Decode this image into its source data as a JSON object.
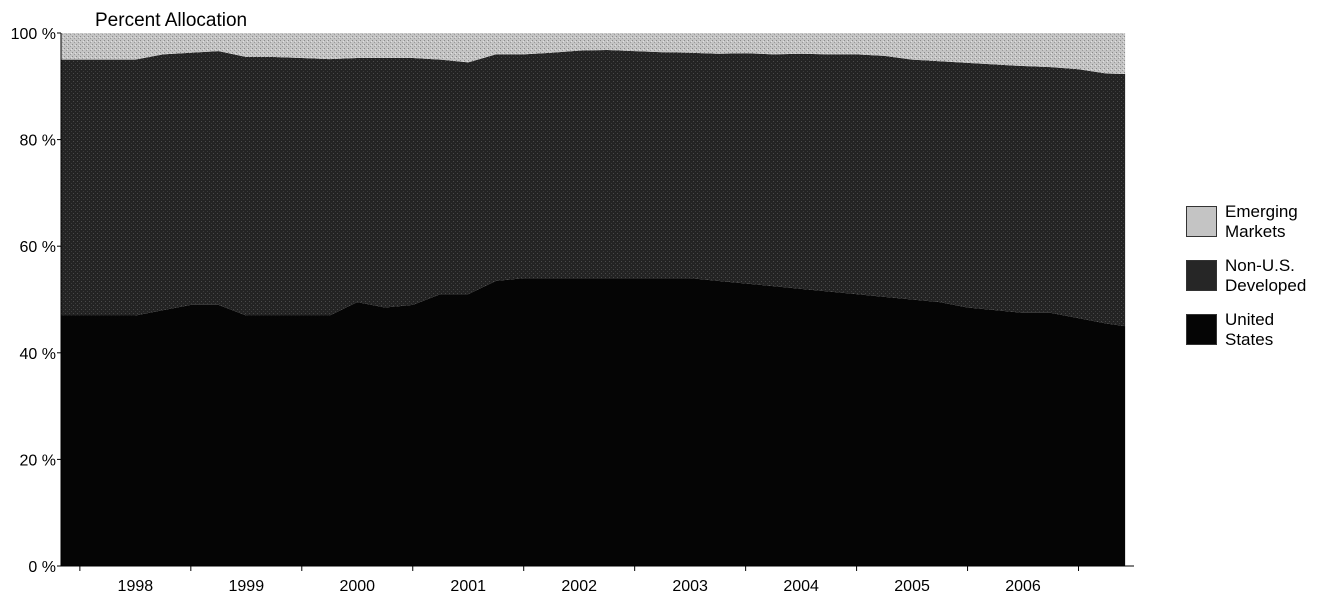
{
  "chart_data": {
    "type": "area",
    "stacked": true,
    "ylabel": "Percent Allocation",
    "ylim": [
      0,
      100
    ],
    "y_ticks": [
      "0 %",
      "20 %",
      "40 %",
      "60 %",
      "80 %",
      "100 %"
    ],
    "x_ticks": [
      "1998",
      "1999",
      "2000",
      "2001",
      "2002",
      "2003",
      "2004",
      "2005",
      "2006"
    ],
    "x": [
      1998.0,
      1998.25,
      1998.5,
      1998.75,
      1999.0,
      1999.25,
      1999.5,
      1999.75,
      2000.0,
      2000.25,
      2000.5,
      2000.75,
      2001.0,
      2001.25,
      2001.5,
      2001.75,
      2002.0,
      2002.25,
      2002.5,
      2002.75,
      2003.0,
      2003.25,
      2003.5,
      2003.75,
      2004.0,
      2004.25,
      2004.5,
      2004.75,
      2005.0,
      2005.25,
      2005.5,
      2005.75,
      2006.0,
      2006.25,
      2006.5,
      2006.75,
      2006.92
    ],
    "x_range": [
      1997.33,
      2007.0
    ],
    "series": [
      {
        "name": "United States",
        "color": "#050505",
        "values": [
          47,
          48,
          49,
          49,
          47,
          47,
          47,
          47,
          49.5,
          48.5,
          49,
          51,
          51,
          53.5,
          54,
          54,
          54,
          54,
          54,
          54,
          54,
          53.5,
          53,
          52.5,
          52,
          51.5,
          51,
          50.5,
          50,
          49.5,
          48.5,
          48,
          47.5,
          47.5,
          46.5,
          45.5,
          45
        ]
      },
      {
        "name": "Non-U.S. Developed",
        "color": "#262626",
        "values": [
          48,
          48,
          47.3,
          47.6,
          48.5,
          48.5,
          48.3,
          48.1,
          45.8,
          46.8,
          46.3,
          44,
          43.5,
          42.5,
          42,
          42.3,
          42.7,
          42.8,
          42.6,
          42.4,
          42.3,
          42.6,
          43.2,
          43.5,
          44.1,
          44.5,
          45,
          45.2,
          45,
          45.2,
          45.9,
          46.1,
          46.3,
          46.1,
          46.7,
          46.9,
          47.3
        ]
      },
      {
        "name": "Emerging Markets",
        "color": "#b2b2b2",
        "values": [
          5,
          4,
          3.7,
          3.4,
          4.5,
          4.5,
          4.7,
          4.9,
          4.7,
          4.7,
          4.7,
          5,
          5.5,
          4,
          4,
          3.7,
          3.3,
          3.2,
          3.4,
          3.6,
          3.7,
          3.9,
          3.8,
          4,
          3.9,
          4,
          4,
          4.3,
          5,
          5.3,
          5.6,
          5.9,
          6.2,
          6.4,
          6.8,
          7.6,
          7.7
        ]
      }
    ],
    "legend": [
      "Emerging Markets",
      "Non-U.S. Developed",
      "United States"
    ],
    "legend_position": "right",
    "grid": false
  }
}
